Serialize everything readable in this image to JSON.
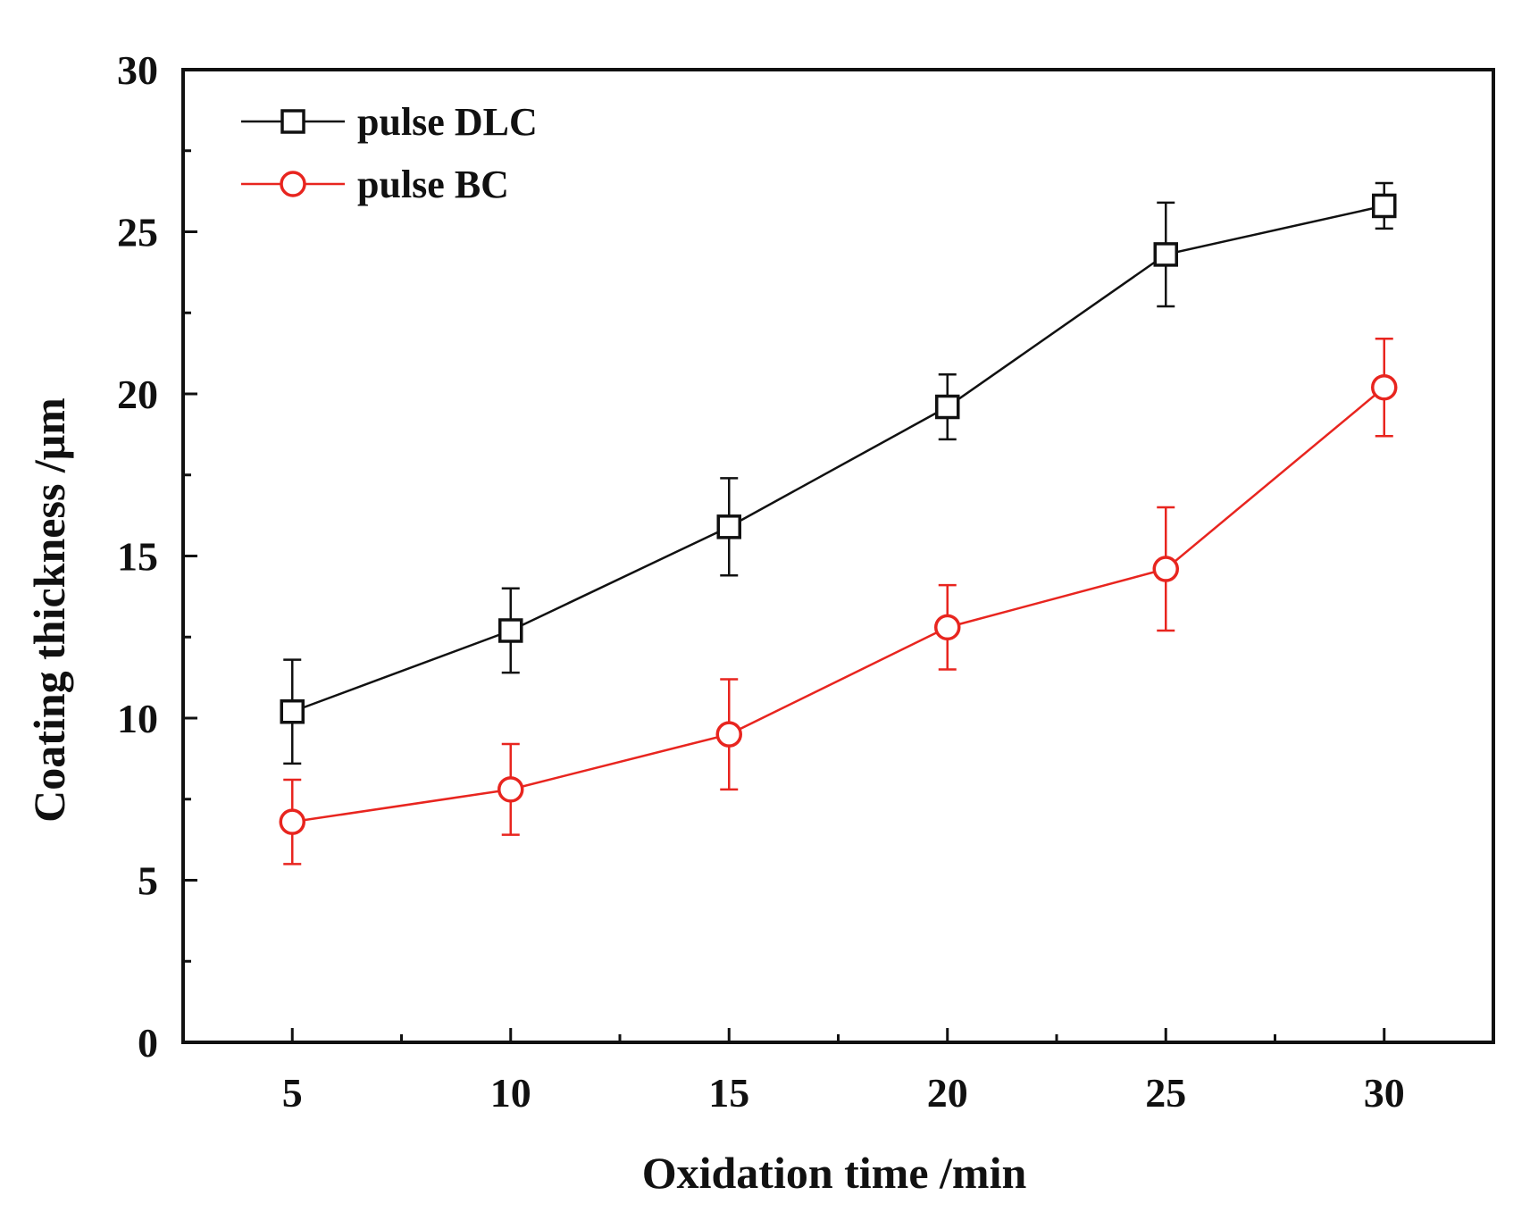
{
  "chart_data": {
    "type": "line",
    "title": "",
    "xlabel": "Oxidation time /min",
    "ylabel": "Coating thickness /μm",
    "x": [
      5,
      10,
      15,
      20,
      25,
      30
    ],
    "xlim": [
      2.5,
      32.5
    ],
    "ylim": [
      0,
      30
    ],
    "x_ticks": [
      5,
      10,
      15,
      20,
      25,
      30
    ],
    "x_minor_ticks": [
      7.5,
      12.5,
      17.5,
      22.5,
      27.5
    ],
    "y_ticks": [
      0,
      5,
      10,
      15,
      20,
      25,
      30
    ],
    "y_minor_ticks": [
      2.5,
      7.5,
      12.5,
      17.5,
      22.5,
      27.5
    ],
    "grid": false,
    "legend_position": "top-left",
    "series": [
      {
        "name": "pulse DLC",
        "marker": "square",
        "color": "#111111",
        "values": [
          10.2,
          12.7,
          15.9,
          19.6,
          24.3,
          25.8
        ],
        "errors": [
          1.6,
          1.3,
          1.5,
          1.0,
          1.6,
          0.7
        ]
      },
      {
        "name": "pulse BC",
        "marker": "circle",
        "color": "#e8251f",
        "values": [
          6.8,
          7.8,
          9.5,
          12.8,
          14.6,
          20.2
        ],
        "errors": [
          1.3,
          1.4,
          1.7,
          1.3,
          1.9,
          1.5
        ]
      }
    ]
  }
}
